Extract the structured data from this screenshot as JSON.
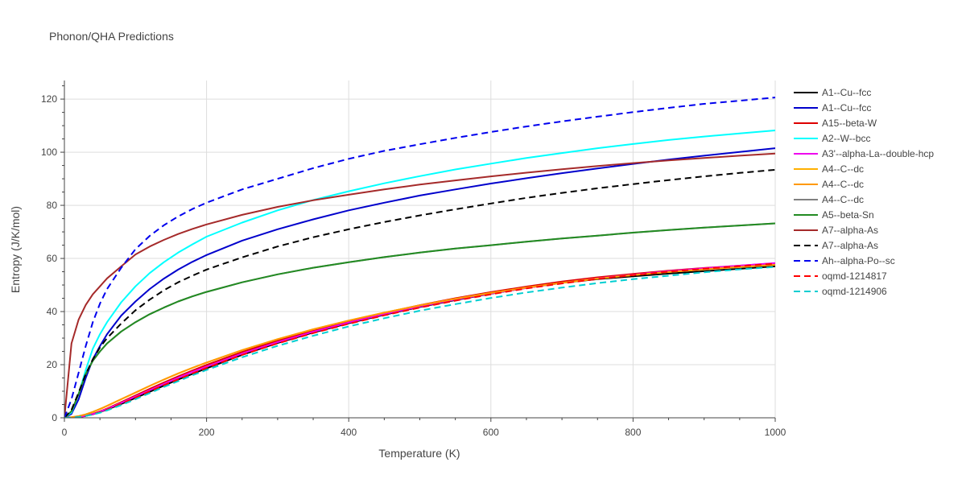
{
  "chart_data": {
    "type": "line",
    "title": "Phonon/QHA Predictions",
    "xlabel": "Temperature (K)",
    "ylabel": "Entropy (J/K/mol)",
    "xlim": [
      0,
      1000
    ],
    "ylim": [
      0,
      127
    ],
    "x_ticks": [
      0,
      200,
      400,
      600,
      800,
      1000
    ],
    "y_ticks": [
      0,
      20,
      40,
      60,
      80,
      100,
      120
    ],
    "grid": true,
    "legend": "right",
    "x": [
      0,
      10,
      20,
      30,
      40,
      50,
      60,
      80,
      100,
      120,
      140,
      160,
      180,
      200,
      250,
      300,
      350,
      400,
      450,
      500,
      550,
      600,
      650,
      700,
      750,
      800,
      850,
      900,
      950,
      1000
    ],
    "series": [
      {
        "name": "A1--Cu--fcc",
        "color": "#000000",
        "dash": false,
        "values": [
          0,
          0.1,
          0.3,
          0.7,
          1.3,
          2.2,
          3.1,
          5.2,
          7.5,
          9.8,
          12.1,
          14.4,
          16.5,
          18.6,
          23.7,
          28.2,
          32.1,
          35.6,
          38.8,
          41.7,
          44.3,
          46.7,
          48.9,
          50.8,
          52.2,
          53.3,
          54.3,
          55.2,
          56.1,
          57.0
        ]
      },
      {
        "name": "A1--Cu--fcc",
        "color": "#0000cc",
        "dash": false,
        "values": [
          0,
          1.5,
          7,
          15,
          22,
          27,
          31.5,
          38.5,
          43.8,
          48.5,
          52.4,
          55.8,
          58.7,
          61.3,
          66.7,
          71.0,
          74.7,
          78.1,
          81.0,
          83.7,
          86.0,
          88.2,
          90.2,
          92.1,
          93.9,
          95.6,
          97.2,
          98.7,
          100.1,
          101.5
        ]
      },
      {
        "name": "A15--beta-W",
        "color": "#dd0000",
        "dash": false,
        "values": [
          0,
          0.1,
          0.3,
          0.8,
          1.5,
          2.4,
          3.5,
          5.9,
          8.4,
          10.9,
          13.3,
          15.6,
          17.8,
          19.9,
          24.8,
          29.1,
          32.9,
          36.4,
          39.5,
          42.4,
          45.0,
          47.3,
          49.4,
          51.3,
          52.9,
          54.2,
          55.4,
          56.4,
          57.3,
          58.2
        ]
      },
      {
        "name": "A2--W--bcc",
        "color": "#00ffff",
        "dash": false,
        "values": [
          0,
          2,
          9,
          18,
          26,
          31.5,
          36,
          43.5,
          49.5,
          54.5,
          58.6,
          62.2,
          65.3,
          68.2,
          73.5,
          78.1,
          82.0,
          85.3,
          88.3,
          91.0,
          93.5,
          95.7,
          97.8,
          99.7,
          101.5,
          103.1,
          104.6,
          105.9,
          107.1,
          108.2
        ]
      },
      {
        "name": "A3'--alpha-La--double-hcp",
        "color": "#ee00ee",
        "dash": false,
        "values": [
          0,
          0.1,
          0.3,
          0.8,
          1.4,
          2.3,
          3.3,
          5.6,
          8.0,
          10.4,
          12.8,
          15.1,
          17.3,
          19.3,
          24.2,
          28.5,
          32.4,
          35.9,
          39.0,
          41.9,
          44.5,
          46.8,
          48.9,
          50.8,
          52.5,
          53.9,
          55.2,
          56.3,
          57.3,
          58.3
        ]
      },
      {
        "name": "A4--C--dc",
        "color": "#ffb000",
        "dash": false,
        "values": [
          0,
          0.2,
          0.6,
          1.3,
          2.2,
          3.3,
          4.5,
          7.0,
          9.5,
          12.0,
          14.4,
          16.7,
          18.8,
          20.8,
          25.5,
          29.6,
          33.3,
          36.6,
          39.6,
          42.3,
          44.8,
          47.0,
          49.0,
          50.8,
          52.4,
          53.7,
          54.9,
          55.9,
          56.8,
          57.6
        ]
      },
      {
        "name": "A4--C--dc",
        "color": "#ff9900",
        "dash": false,
        "values": [
          0,
          0.2,
          0.6,
          1.3,
          2.2,
          3.3,
          4.5,
          7.0,
          9.5,
          12.0,
          14.4,
          16.7,
          18.8,
          20.8,
          25.5,
          29.6,
          33.3,
          36.6,
          39.6,
          42.3,
          44.8,
          47.0,
          49.0,
          50.8,
          52.4,
          53.7,
          54.9,
          55.9,
          56.8,
          57.6
        ]
      },
      {
        "name": "A4--C--dc",
        "color": "#808080",
        "dash": false,
        "values": [
          0,
          2.5,
          9,
          16.5,
          21.5,
          25,
          28,
          32.5,
          36.0,
          39.0,
          41.5,
          43.8,
          45.7,
          47.4,
          51.0,
          54.0,
          56.5,
          58.6,
          60.5,
          62.2,
          63.7,
          65.0,
          66.3,
          67.5,
          68.6,
          69.7,
          70.7,
          71.6,
          72.4,
          73.2
        ]
      },
      {
        "name": "A5--beta-Sn",
        "color": "#228b22",
        "dash": false,
        "values": [
          0,
          2.5,
          9,
          16.5,
          21.5,
          25,
          28,
          32.5,
          36.0,
          39.0,
          41.5,
          43.8,
          45.7,
          47.4,
          51.0,
          54.0,
          56.5,
          58.6,
          60.5,
          62.2,
          63.7,
          65.0,
          66.3,
          67.5,
          68.6,
          69.7,
          70.7,
          71.6,
          72.4,
          73.2
        ]
      },
      {
        "name": "A7--alpha-As",
        "color": "#a52a2a",
        "dash": false,
        "values": [
          0,
          28,
          37,
          42.5,
          46.5,
          49.5,
          52.5,
          57,
          61.5,
          64.5,
          67.0,
          69.2,
          71.1,
          72.8,
          76.4,
          79.4,
          81.9,
          84.0,
          86.0,
          87.8,
          89.4,
          90.9,
          92.3,
          93.6,
          94.8,
          95.9,
          96.9,
          97.8,
          98.7,
          99.5
        ]
      },
      {
        "name": "A7--alpha-As",
        "color": "#000000",
        "dash": true,
        "values": [
          0,
          3,
          9.5,
          16.5,
          22,
          26.5,
          30,
          35.5,
          40.5,
          44.5,
          48.0,
          51.0,
          53.5,
          55.8,
          60.4,
          64.5,
          68.0,
          71.0,
          73.7,
          76.2,
          78.5,
          80.7,
          82.8,
          84.7,
          86.4,
          88.0,
          89.5,
          90.9,
          92.2,
          93.4
        ]
      },
      {
        "name": "Ah--alpha-Po--sc",
        "color": "#0000ee",
        "dash": true,
        "values": [
          0,
          7,
          17,
          27,
          36,
          43,
          48.5,
          56.5,
          63.5,
          68.5,
          72.5,
          75.8,
          78.6,
          81.0,
          86.0,
          90.0,
          94.0,
          97.5,
          100.5,
          103.0,
          105.4,
          107.6,
          109.7,
          111.6,
          113.4,
          115.1,
          116.7,
          118.2,
          119.4,
          120.6
        ]
      },
      {
        "name": "oqmd-1214817",
        "color": "#ff0000",
        "dash": true,
        "values": [
          0,
          0.1,
          0.3,
          0.7,
          1.3,
          2.1,
          3.1,
          5.3,
          7.6,
          10.0,
          12.3,
          14.5,
          16.7,
          18.8,
          23.7,
          28.0,
          31.9,
          35.4,
          38.6,
          41.5,
          44.1,
          46.5,
          48.7,
          50.6,
          52.3,
          53.7,
          55.0,
          56.1,
          57.1,
          58.0
        ]
      },
      {
        "name": "oqmd-1214906",
        "color": "#00ced1",
        "dash": true,
        "values": [
          0,
          0.1,
          0.3,
          0.7,
          1.2,
          1.9,
          2.8,
          4.8,
          7.0,
          9.3,
          11.6,
          13.8,
          16.0,
          18.0,
          22.8,
          27.1,
          30.9,
          34.4,
          37.5,
          40.3,
          42.8,
          45.1,
          47.2,
          49.0,
          50.7,
          52.2,
          53.5,
          54.8,
          55.9,
          56.8
        ]
      }
    ]
  }
}
